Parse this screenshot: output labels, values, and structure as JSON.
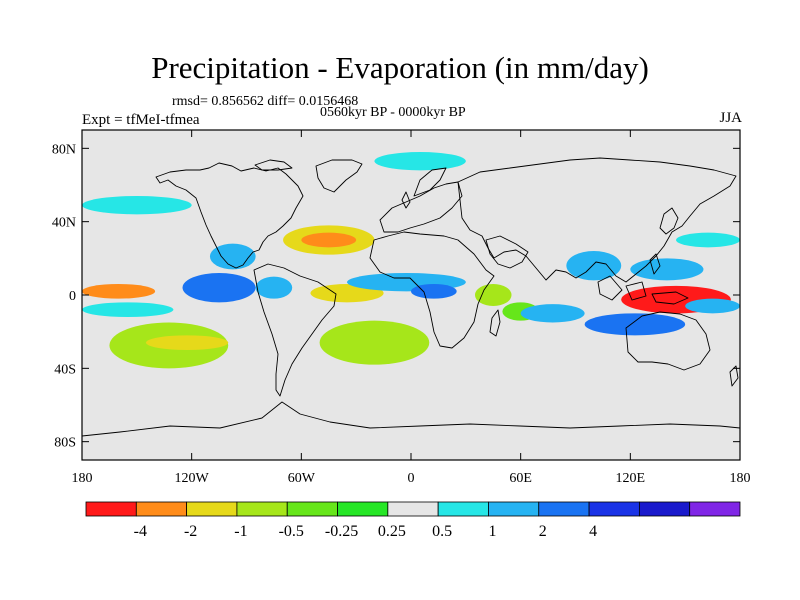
{
  "title": "Precipitation - Evaporation (in mm/day)",
  "stats_line": "rmsd= 0.856562 diff= 0.0156468",
  "period": "0560kyr BP - 0000kyr BP",
  "experiment": "Expt = tfMeI-tfmea",
  "season": "JJA",
  "map": {
    "projection": "cylindrical equidistant",
    "lon_range": [
      -180,
      180
    ],
    "lat_range": [
      -90,
      90
    ],
    "background_color": "#e6e6e6",
    "lat_ticks": [
      {
        "value": 80,
        "label": "80N"
      },
      {
        "value": 40,
        "label": "40N"
      },
      {
        "value": 0,
        "label": "0"
      },
      {
        "value": -40,
        "label": "40S"
      },
      {
        "value": -80,
        "label": "80S"
      }
    ],
    "lon_ticks": [
      {
        "value": -180,
        "label": "180"
      },
      {
        "value": -120,
        "label": "120W"
      },
      {
        "value": -60,
        "label": "60W"
      },
      {
        "value": 0,
        "label": "0"
      },
      {
        "value": 60,
        "label": "60E"
      },
      {
        "value": 120,
        "label": "120E"
      },
      {
        "value": 180,
        "label": "180"
      }
    ]
  },
  "colorbar": {
    "colors": [
      "#ff1a1a",
      "#ff8c1a",
      "#e6d91a",
      "#a6e61a",
      "#66e61a",
      "#26e626",
      "#e6e6e6",
      "#26e6e6",
      "#26b3f2",
      "#1a73f2",
      "#1a33e6",
      "#1a1acc",
      "#8026e6"
    ],
    "labels": [
      "-4",
      "-2",
      "-1",
      "-0.5",
      "-0.25",
      "0.25",
      "0.5",
      "1",
      "2",
      "4"
    ]
  },
  "chart_data": {
    "type": "heatmap",
    "title": "Precipitation - Evaporation (in mm/day)",
    "levels": [
      -4,
      -2,
      -1,
      -0.5,
      -0.25,
      0.25,
      0.5,
      1,
      2,
      4
    ],
    "regions": [
      {
        "lon": [
          -180,
          -140
        ],
        "lat": [
          -2,
          6
        ],
        "value": -3.0
      },
      {
        "lon": [
          -180,
          -130
        ],
        "lat": [
          -12,
          -4
        ],
        "value": 0.5
      },
      {
        "lon": [
          -165,
          -100
        ],
        "lat": [
          -40,
          -15
        ],
        "value": -0.6
      },
      {
        "lon": [
          -145,
          -100
        ],
        "lat": [
          -30,
          -22
        ],
        "value": -1.5
      },
      {
        "lon": [
          -125,
          -85
        ],
        "lat": [
          -4,
          12
        ],
        "value": 2.5
      },
      {
        "lon": [
          -110,
          -85
        ],
        "lat": [
          14,
          28
        ],
        "value": 1.2
      },
      {
        "lon": [
          -85,
          -65
        ],
        "lat": [
          -2,
          10
        ],
        "value": 1.5
      },
      {
        "lon": [
          -70,
          -20
        ],
        "lat": [
          22,
          38
        ],
        "value": -1.2
      },
      {
        "lon": [
          -60,
          -30
        ],
        "lat": [
          26,
          34
        ],
        "value": -2.2
      },
      {
        "lon": [
          -55,
          -15
        ],
        "lat": [
          -4,
          6
        ],
        "value": -2.0
      },
      {
        "lon": [
          -50,
          10
        ],
        "lat": [
          -38,
          -14
        ],
        "value": -0.7
      },
      {
        "lon": [
          -35,
          30
        ],
        "lat": [
          2,
          12
        ],
        "value": 1.8
      },
      {
        "lon": [
          0,
          25
        ],
        "lat": [
          -2,
          6
        ],
        "value": 2.2
      },
      {
        "lon": [
          35,
          55
        ],
        "lat": [
          -6,
          6
        ],
        "value": -0.7
      },
      {
        "lon": [
          50,
          70
        ],
        "lat": [
          -14,
          -4
        ],
        "value": -0.4
      },
      {
        "lon": [
          60,
          95
        ],
        "lat": [
          -15,
          -5
        ],
        "value": 1.2
      },
      {
        "lon": [
          85,
          115
        ],
        "lat": [
          8,
          24
        ],
        "value": 1.3
      },
      {
        "lon": [
          95,
          150
        ],
        "lat": [
          -22,
          -10
        ],
        "value": 2.0
      },
      {
        "lon": [
          115,
          175
        ],
        "lat": [
          -10,
          5
        ],
        "value": -4.2
      },
      {
        "lon": [
          120,
          160
        ],
        "lat": [
          8,
          20
        ],
        "value": 1.5
      },
      {
        "lon": [
          145,
          180
        ],
        "lat": [
          26,
          34
        ],
        "value": 0.7
      },
      {
        "lon": [
          150,
          180
        ],
        "lat": [
          -10,
          -2
        ],
        "value": 1.2
      },
      {
        "lon": [
          -180,
          -120
        ],
        "lat": [
          44,
          54
        ],
        "value": 0.6
      },
      {
        "lon": [
          -20,
          30
        ],
        "lat": [
          68,
          78
        ],
        "value": 0.5
      },
      {
        "lon": [
          -130,
          50
        ],
        "lat": [
          -68,
          -60
        ],
        "value": 0.4
      }
    ]
  }
}
